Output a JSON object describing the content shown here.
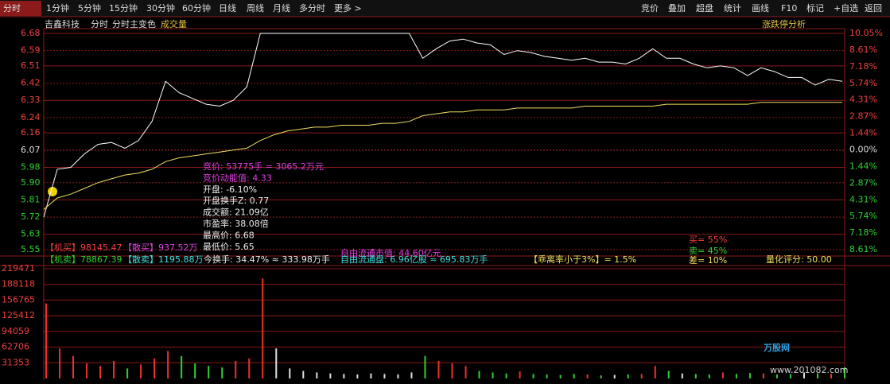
{
  "toolbar": {
    "tabs": [
      "分时",
      "1分钟",
      "5分钟",
      "15分钟",
      "30分钟",
      "60分钟",
      "日线",
      "周线",
      "月线",
      "多分时",
      "更多 >"
    ],
    "buttons": [
      "竞价",
      "叠加",
      "超盘",
      "统计",
      "画线",
      "F10",
      "标记",
      "+自选",
      "返回"
    ]
  },
  "header": {
    "items": [
      "吉鑫科技",
      "分时",
      "分时主变色",
      "成交量"
    ],
    "right": "涨跌停分析"
  },
  "info": {
    "lines": [
      "竞价: 53775手 = 3065.2万元",
      "竞价动能值: 4.33",
      "开盘: -6.10%",
      "开盘换手Z: 0.77",
      "成交额: 21.09亿",
      "市盈率: 38.08倍",
      "最高价: 6.68",
      "最低价: 5.65"
    ]
  },
  "stats": {
    "items": [
      "【机买】98145.47",
      "【散买】937.52万",
      "【机卖】78867.39",
      "【散卖】1195.88万",
      "今换手: 34.47% ≈ 333.98万手",
      "自由流通市值: 44.60亿元",
      "自由流通盘: 6.96亿股 ≈ 695.83万手",
      "【乖离率小于3%】= 1.5%",
      "买= 55%",
      "卖= 45%",
      "差= 10%",
      "量化评分: 50.00"
    ]
  },
  "logo": {
    "name": "万股网",
    "url": "www.201082.com"
  },
  "chart_data": [
    {
      "type": "line",
      "grid": true,
      "series": [
        {
          "color": "#ffffff",
          "values": [
            5.72,
            5.97,
            5.98,
            6.05,
            6.1,
            6.11,
            6.08,
            6.12,
            6.22,
            6.43,
            6.37,
            6.34,
            6.31,
            6.3,
            6.33,
            6.4,
            6.68,
            6.68,
            6.68,
            6.68,
            6.68,
            6.68,
            6.68,
            6.68,
            6.68,
            6.68,
            6.68,
            6.68,
            6.55,
            6.6,
            6.64,
            6.65,
            6.63,
            6.62,
            6.57,
            6.59,
            6.58,
            6.56,
            6.55,
            6.54,
            6.55,
            6.53,
            6.53,
            6.52,
            6.55,
            6.6,
            6.55,
            6.55,
            6.52,
            6.5,
            6.51,
            6.5,
            6.46,
            6.5,
            6.48,
            6.45,
            6.45,
            6.41,
            6.44,
            6.43
          ]
        },
        {
          "color": "#f0e060",
          "values": [
            5.76,
            5.82,
            5.84,
            5.87,
            5.9,
            5.92,
            5.94,
            5.95,
            5.97,
            6.01,
            6.03,
            6.04,
            6.05,
            6.06,
            6.07,
            6.08,
            6.12,
            6.15,
            6.17,
            6.18,
            6.19,
            6.19,
            6.2,
            6.2,
            6.2,
            6.21,
            6.21,
            6.22,
            6.25,
            6.26,
            6.27,
            6.27,
            6.28,
            6.28,
            6.28,
            6.29,
            6.29,
            6.29,
            6.29,
            6.29,
            6.3,
            6.3,
            6.3,
            6.3,
            6.3,
            6.3,
            6.31,
            6.31,
            6.31,
            6.31,
            6.31,
            6.31,
            6.31,
            6.32,
            6.32,
            6.32,
            6.32,
            6.32,
            6.32,
            6.32
          ]
        }
      ],
      "ylim": [
        5.55,
        6.68
      ],
      "yticks": [
        6.68,
        6.59,
        6.51,
        6.42,
        6.33,
        6.24,
        6.16,
        6.07,
        5.98,
        {
          "value": 5.9,
          "label": "5.90"
        },
        5.81,
        5.72,
        5.63,
        5.55
      ],
      "y2lim": [
        -8.61,
        10.05
      ],
      "y2ticks": [
        {
          "value": 10.05,
          "label": "10.05%"
        },
        {
          "value": 8.61,
          "label": "8.61%"
        },
        {
          "value": 7.18,
          "label": "7.18%"
        },
        {
          "value": 5.74,
          "label": "5.74%"
        },
        {
          "value": 4.31,
          "label": "4.31%"
        },
        {
          "value": 2.87,
          "label": "2.87%"
        },
        {
          "value": 1.44,
          "label": "1.44%"
        },
        {
          "value": 0,
          "label": "0.00%"
        },
        {
          "value": -1.44,
          "label": "1.44%"
        },
        {
          "value": -2.87,
          "label": "2.87%"
        },
        {
          "value": -4.31,
          "label": "4.31%"
        },
        {
          "value": -5.74,
          "label": "5.74%"
        },
        {
          "value": -7.18,
          "label": "7.18%"
        },
        {
          "value": -8.61,
          "label": "8.61%"
        }
      ]
    },
    {
      "type": "bar",
      "grid": true,
      "values": [
        150000,
        60000,
        45000,
        30000,
        25000,
        35000,
        20000,
        28000,
        40000,
        55000,
        45000,
        30000,
        25000,
        22000,
        35000,
        40000,
        200000,
        60000,
        20000,
        15000,
        12000,
        10000,
        9000,
        8000,
        10000,
        9000,
        8000,
        12000,
        45000,
        35000,
        30000,
        25000,
        15000,
        12000,
        10000,
        14000,
        9000,
        8000,
        7000,
        9000,
        8000,
        6000,
        7000,
        8000,
        9000,
        25000,
        15000,
        10000,
        9000,
        8000,
        12000,
        9000,
        11000,
        10000,
        8000,
        9000,
        12000,
        10000,
        9000,
        22000
      ],
      "colors": [
        "#f03030",
        "#f03030",
        "#f03030",
        "#f03030",
        "#f03030",
        "#f03030",
        "#30d030",
        "#f03030",
        "#f03030",
        "#f03030",
        "#30d030",
        "#30d030",
        "#30d030",
        "#30d030",
        "#f03030",
        "#f03030",
        "#f03030",
        "#e0e0e0",
        "#e0e0e0",
        "#e0e0e0",
        "#e0e0e0",
        "#e0e0e0",
        "#e0e0e0",
        "#e0e0e0",
        "#e0e0e0",
        "#e0e0e0",
        "#e0e0e0",
        "#e0e0e0",
        "#30d030",
        "#f03030",
        "#f03030",
        "#f03030",
        "#30d030",
        "#30d030",
        "#30d030",
        "#f03030",
        "#30d030",
        "#30d030",
        "#30d030",
        "#30d030",
        "#f03030",
        "#30d030",
        "#e0e0e0",
        "#30d030",
        "#f03030",
        "#f03030",
        "#30d030",
        "#e0e0e0",
        "#30d030",
        "#30d030",
        "#f03030",
        "#30d030",
        "#30d030",
        "#f03030",
        "#30d030",
        "#30d030",
        "#e0e0e0",
        "#30d030",
        "#f03030",
        "#30d030"
      ],
      "ylim": [
        0,
        219471
      ],
      "yticks": [
        219471,
        188118,
        156765,
        125412,
        94059,
        62706,
        31353
      ]
    }
  ]
}
